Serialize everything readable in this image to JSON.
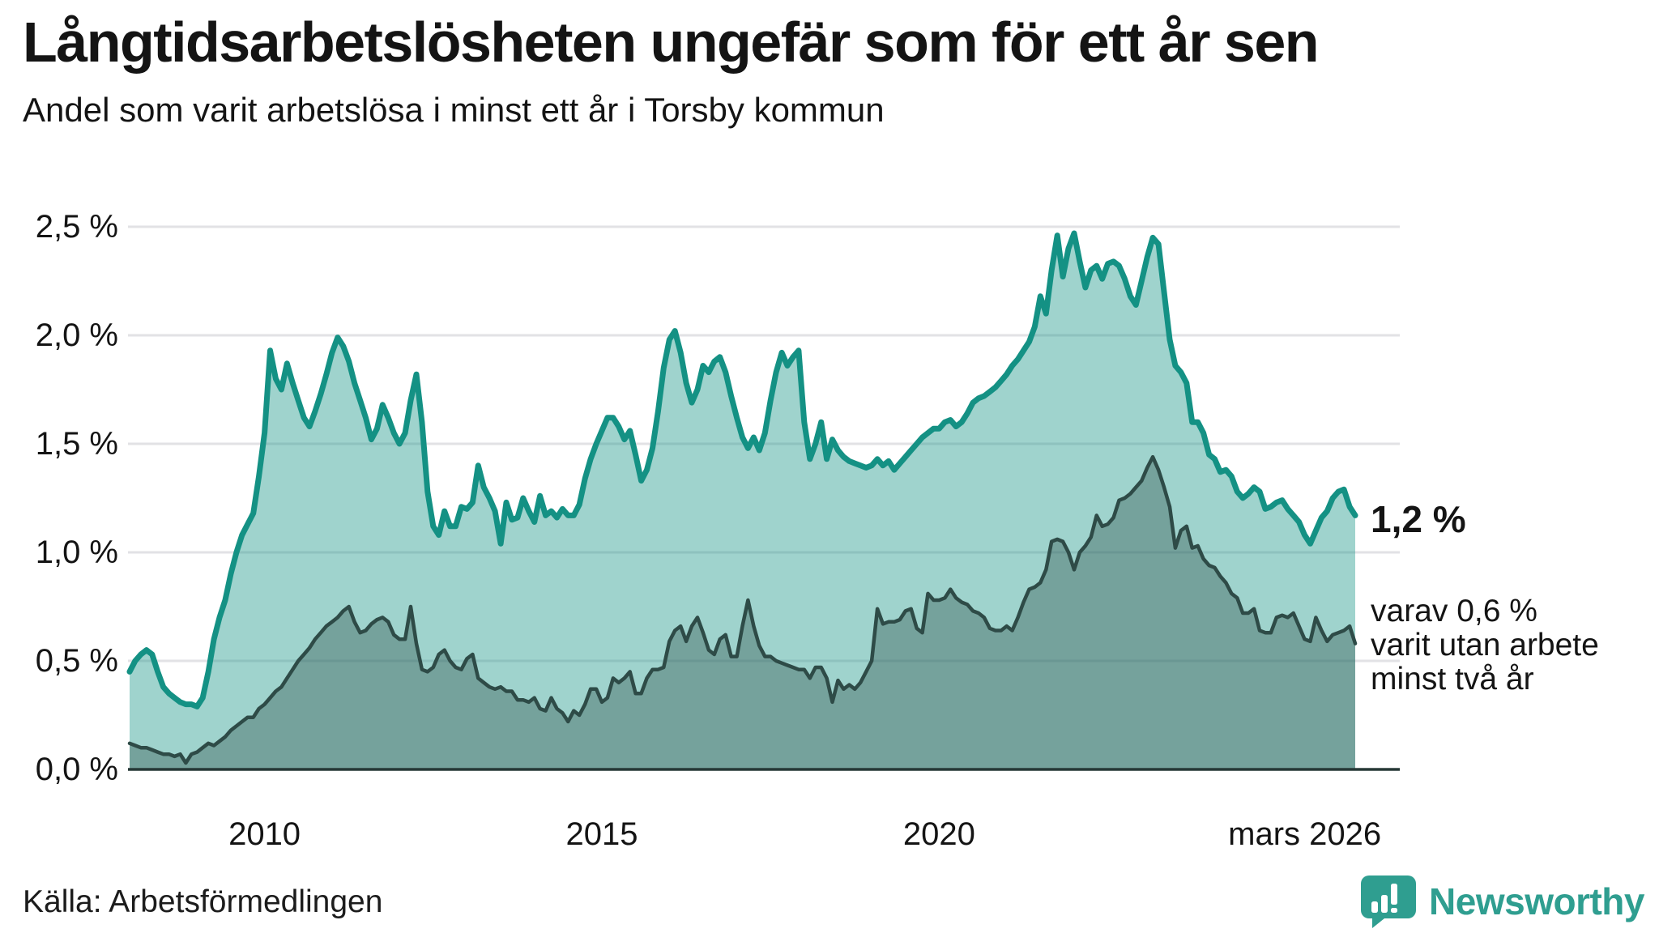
{
  "header": {
    "title": "Långtidsarbetslösheten ungefär som för ett år sen",
    "subtitle": "Andel som varit arbetslösa i minst ett år i Torsby kommun"
  },
  "annotations": {
    "latest_total": "1,2 %",
    "latest_breakdown": "varav 0,6 %\nvarit utan arbete\nminst två år"
  },
  "footer": {
    "source": "Källa: Arbetsförmedlingen",
    "brand": "Newsworthy",
    "logo_icon": "newsworthy-speech-bubble-bar-chart-icon"
  },
  "colors": {
    "accent_teal_line": "#149184",
    "teal_fill": "#1a9689",
    "dark_line": "#2e4b47",
    "dark_fill": "#2f4f4a",
    "gridline": "#e2e2e5",
    "axis_baseline": "#263836",
    "brand_teal": "#2f9e90",
    "text": "#141414"
  },
  "chart_data": {
    "type": "area",
    "title": "Långtidsarbetslösheten ungefär som för ett år sen",
    "subtitle": "Andel som varit arbetslösa i minst ett år i Torsby kommun",
    "x_unit": "month",
    "x_start": "2008-01",
    "x_end": "2026-03",
    "ylim": [
      0,
      2.6
    ],
    "grid": true,
    "legend_position": "none",
    "y_ticks": [
      {
        "value": 2.5,
        "label": "2,5 %"
      },
      {
        "value": 2.0,
        "label": "2,0 %"
      },
      {
        "value": 1.5,
        "label": "1,5 %"
      },
      {
        "value": 1.0,
        "label": "1,0 %"
      },
      {
        "value": 0.5,
        "label": "0,5 %"
      },
      {
        "value": 0.0,
        "label": "0,0 %"
      }
    ],
    "x_ticks": [
      {
        "label": "2010",
        "index": 24,
        "align": "center"
      },
      {
        "label": "2015",
        "index": 84,
        "align": "center"
      },
      {
        "label": "2020",
        "index": 144,
        "align": "center"
      },
      {
        "label": "mars 2026",
        "index": 218,
        "align": "end"
      }
    ],
    "series": [
      {
        "name": "Andel arbetslösa minst ett år",
        "latest_label": "1,2 %",
        "line_color": "#149184",
        "fill_color": "#1a9689",
        "fill_opacity": 0.42,
        "line_width": 7,
        "values": [
          0.45,
          0.5,
          0.53,
          0.55,
          0.53,
          0.45,
          0.38,
          0.35,
          0.33,
          0.31,
          0.3,
          0.3,
          0.29,
          0.33,
          0.45,
          0.6,
          0.7,
          0.78,
          0.9,
          1.0,
          1.08,
          1.13,
          1.18,
          1.35,
          1.55,
          1.93,
          1.8,
          1.75,
          1.87,
          1.78,
          1.7,
          1.62,
          1.58,
          1.65,
          1.73,
          1.82,
          1.92,
          1.99,
          1.95,
          1.88,
          1.78,
          1.7,
          1.62,
          1.52,
          1.57,
          1.68,
          1.62,
          1.55,
          1.5,
          1.55,
          1.7,
          1.82,
          1.6,
          1.28,
          1.12,
          1.08,
          1.19,
          1.12,
          1.12,
          1.21,
          1.2,
          1.23,
          1.4,
          1.3,
          1.25,
          1.19,
          1.04,
          1.23,
          1.15,
          1.16,
          1.25,
          1.19,
          1.14,
          1.26,
          1.17,
          1.19,
          1.16,
          1.2,
          1.17,
          1.17,
          1.22,
          1.34,
          1.43,
          1.5,
          1.56,
          1.62,
          1.62,
          1.58,
          1.52,
          1.56,
          1.45,
          1.33,
          1.38,
          1.48,
          1.65,
          1.85,
          1.98,
          2.02,
          1.92,
          1.78,
          1.69,
          1.75,
          1.86,
          1.83,
          1.88,
          1.9,
          1.83,
          1.72,
          1.62,
          1.53,
          1.48,
          1.53,
          1.47,
          1.55,
          1.7,
          1.83,
          1.92,
          1.86,
          1.9,
          1.93,
          1.6,
          1.43,
          1.5,
          1.6,
          1.43,
          1.52,
          1.47,
          1.44,
          1.42,
          1.41,
          1.4,
          1.39,
          1.4,
          1.43,
          1.4,
          1.42,
          1.38,
          1.41,
          1.44,
          1.47,
          1.5,
          1.53,
          1.55,
          1.57,
          1.57,
          1.6,
          1.61,
          1.58,
          1.6,
          1.64,
          1.69,
          1.71,
          1.72,
          1.74,
          1.76,
          1.79,
          1.82,
          1.86,
          1.89,
          1.93,
          1.97,
          2.04,
          2.18,
          2.1,
          2.3,
          2.46,
          2.27,
          2.4,
          2.47,
          2.34,
          2.22,
          2.3,
          2.32,
          2.26,
          2.33,
          2.34,
          2.32,
          2.26,
          2.18,
          2.14,
          2.25,
          2.36,
          2.45,
          2.42,
          2.2,
          1.98,
          1.86,
          1.83,
          1.78,
          1.6,
          1.6,
          1.55,
          1.45,
          1.43,
          1.37,
          1.38,
          1.35,
          1.28,
          1.25,
          1.27,
          1.3,
          1.28,
          1.2,
          1.21,
          1.23,
          1.24,
          1.2,
          1.17,
          1.14,
          1.08,
          1.04,
          1.1,
          1.16,
          1.19,
          1.25,
          1.28,
          1.29,
          1.21,
          1.17
        ]
      },
      {
        "name": "Andel utan arbete minst två år",
        "latest_label": "0,6 %",
        "line_color": "#2e4b47",
        "fill_color": "#2f4f4a",
        "fill_opacity": 0.37,
        "line_width": 4.5,
        "values": [
          0.12,
          0.11,
          0.1,
          0.1,
          0.09,
          0.08,
          0.07,
          0.07,
          0.06,
          0.07,
          0.03,
          0.07,
          0.08,
          0.1,
          0.12,
          0.11,
          0.13,
          0.15,
          0.18,
          0.2,
          0.22,
          0.24,
          0.24,
          0.28,
          0.3,
          0.33,
          0.36,
          0.38,
          0.42,
          0.46,
          0.5,
          0.53,
          0.56,
          0.6,
          0.63,
          0.66,
          0.68,
          0.7,
          0.73,
          0.75,
          0.68,
          0.63,
          0.64,
          0.67,
          0.69,
          0.7,
          0.68,
          0.62,
          0.6,
          0.6,
          0.75,
          0.58,
          0.46,
          0.45,
          0.47,
          0.53,
          0.55,
          0.5,
          0.47,
          0.46,
          0.51,
          0.53,
          0.42,
          0.4,
          0.38,
          0.37,
          0.38,
          0.36,
          0.36,
          0.32,
          0.32,
          0.31,
          0.33,
          0.28,
          0.27,
          0.33,
          0.28,
          0.26,
          0.22,
          0.27,
          0.25,
          0.3,
          0.37,
          0.37,
          0.31,
          0.33,
          0.42,
          0.4,
          0.42,
          0.45,
          0.35,
          0.35,
          0.42,
          0.46,
          0.46,
          0.47,
          0.59,
          0.64,
          0.66,
          0.59,
          0.66,
          0.7,
          0.63,
          0.55,
          0.53,
          0.6,
          0.62,
          0.52,
          0.52,
          0.66,
          0.78,
          0.66,
          0.57,
          0.52,
          0.52,
          0.5,
          0.49,
          0.48,
          0.47,
          0.46,
          0.46,
          0.42,
          0.47,
          0.47,
          0.42,
          0.31,
          0.41,
          0.37,
          0.39,
          0.37,
          0.4,
          0.45,
          0.5,
          0.74,
          0.67,
          0.68,
          0.68,
          0.69,
          0.73,
          0.74,
          0.65,
          0.63,
          0.81,
          0.78,
          0.78,
          0.79,
          0.83,
          0.79,
          0.77,
          0.76,
          0.73,
          0.72,
          0.7,
          0.65,
          0.64,
          0.64,
          0.66,
          0.64,
          0.7,
          0.77,
          0.83,
          0.84,
          0.86,
          0.92,
          1.05,
          1.06,
          1.05,
          1.0,
          0.92,
          1.0,
          1.03,
          1.07,
          1.17,
          1.12,
          1.13,
          1.16,
          1.24,
          1.25,
          1.27,
          1.3,
          1.33,
          1.39,
          1.44,
          1.38,
          1.3,
          1.21,
          1.02,
          1.1,
          1.12,
          1.02,
          1.03,
          0.97,
          0.94,
          0.93,
          0.89,
          0.86,
          0.81,
          0.79,
          0.72,
          0.72,
          0.74,
          0.64,
          0.63,
          0.63,
          0.7,
          0.71,
          0.7,
          0.72,
          0.66,
          0.6,
          0.59,
          0.7,
          0.64,
          0.59,
          0.62,
          0.63,
          0.64,
          0.66,
          0.58
        ]
      }
    ]
  }
}
